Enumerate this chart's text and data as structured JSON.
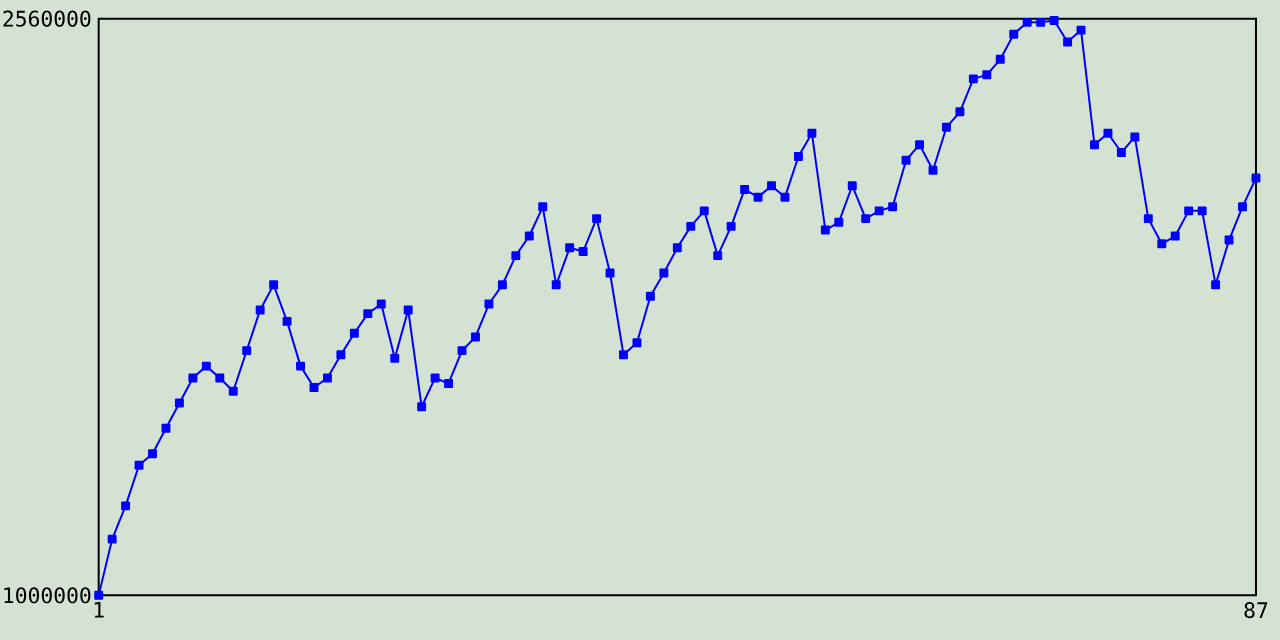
{
  "chart_data": {
    "type": "line",
    "x": [
      1,
      2,
      3,
      4,
      5,
      6,
      7,
      8,
      9,
      10,
      11,
      12,
      13,
      14,
      15,
      16,
      17,
      18,
      19,
      20,
      21,
      22,
      23,
      24,
      25,
      26,
      27,
      28,
      29,
      30,
      31,
      32,
      33,
      34,
      35,
      36,
      37,
      38,
      39,
      40,
      41,
      42,
      43,
      44,
      45,
      46,
      47,
      48,
      49,
      50,
      51,
      52,
      53,
      54,
      55,
      56,
      57,
      58,
      59,
      60,
      61,
      62,
      63,
      64,
      65,
      66,
      67,
      68,
      69,
      70,
      71,
      72,
      73,
      74,
      75,
      76,
      77,
      78,
      79,
      80,
      81,
      82,
      83,
      84,
      85,
      86,
      87
    ],
    "series": [
      {
        "color": "#0000ff",
        "values": [
          1000000,
          1152000,
          1242000,
          1352000,
          1383000,
          1452000,
          1520000,
          1588000,
          1620000,
          1588000,
          1552000,
          1662000,
          1772000,
          1840000,
          1741000,
          1620000,
          1562000,
          1588000,
          1651000,
          1709000,
          1762000,
          1788000,
          1641000,
          1772000,
          1510000,
          1588000,
          1573000,
          1662000,
          1699000,
          1788000,
          1840000,
          1919000,
          1972000,
          2051000,
          1840000,
          1940000,
          1930000,
          2019000,
          1872000,
          1651000,
          1683000,
          1809000,
          1872000,
          1940000,
          1998000,
          2040000,
          1919000,
          1998000,
          2098000,
          2077000,
          2108000,
          2077000,
          2187000,
          2250000,
          1988000,
          2009000,
          2108000,
          2019000,
          2040000,
          2051000,
          2177000,
          2219000,
          2150000,
          2266000,
          2308000,
          2397000,
          2408000,
          2450000,
          2518000,
          2550000,
          2550000,
          2555000,
          2497000,
          2529000,
          2219000,
          2250000,
          2198000,
          2240000,
          2019000,
          1951000,
          1972000,
          2040000,
          2040000,
          1840000,
          1961000,
          2051000,
          2129000
        ]
      }
    ],
    "xlim": [
      1,
      87
    ],
    "ylim": [
      1000000,
      2560000
    ],
    "xticks": [
      1,
      87
    ],
    "yticks": [
      1000000,
      2560000
    ],
    "marker": "square",
    "line_style": "solid"
  }
}
